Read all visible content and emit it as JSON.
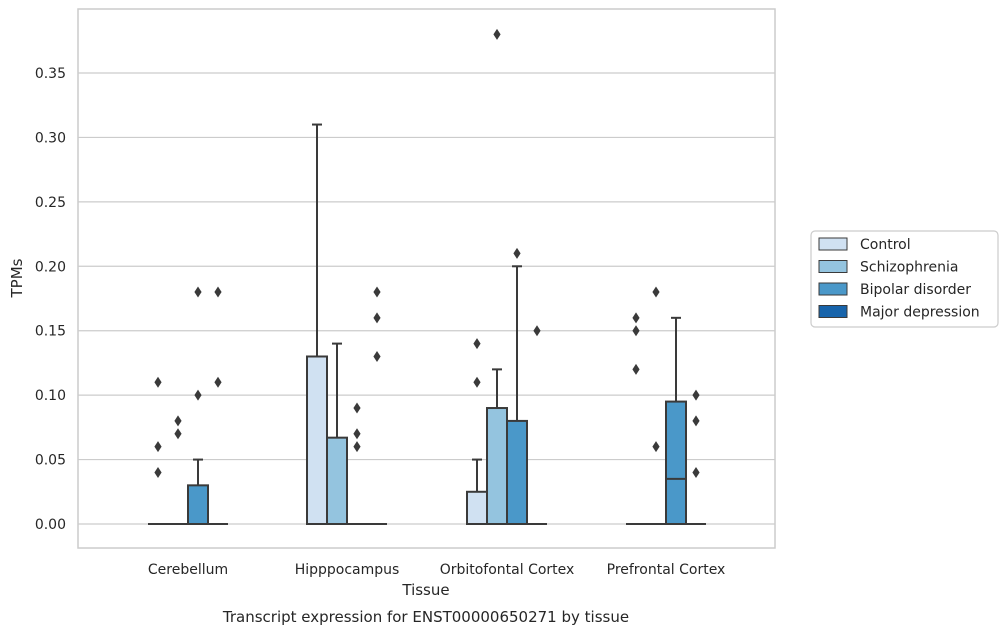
{
  "chart_data": {
    "type": "box",
    "title": "",
    "caption": "Transcript expression for ENST00000650271 by tissue",
    "xlabel": "Tissue",
    "ylabel": "TPMs",
    "ylim": [
      -0.018,
      0.395
    ],
    "yticks": [
      "0.00",
      "0.05",
      "0.10",
      "0.15",
      "0.20",
      "0.25",
      "0.30",
      "0.35"
    ],
    "grid": "horizontal",
    "legend_position": "right",
    "categories": [
      "Cerebellum",
      "Hipppocampus",
      "Orbitofontal Cortex",
      "Prefrontal Cortex"
    ],
    "series": [
      {
        "name": "Control",
        "color": "#d0e1f2",
        "boxes": [
          {
            "q1": 0,
            "median": 0,
            "q3": 0,
            "whisker_low": 0,
            "whisker_high": 0,
            "outliers": [
              0.04,
              0.06,
              0.11
            ]
          },
          {
            "q1": 0,
            "median": 0,
            "q3": 0.13,
            "whisker_low": 0,
            "whisker_high": 0.31,
            "outliers": []
          },
          {
            "q1": 0,
            "median": 0,
            "q3": 0.025,
            "whisker_low": 0,
            "whisker_high": 0.05,
            "outliers": [
              0.11,
              0.14
            ]
          },
          {
            "q1": 0,
            "median": 0,
            "q3": 0,
            "whisker_low": 0,
            "whisker_high": 0,
            "outliers": [
              0.12,
              0.15,
              0.16
            ]
          }
        ]
      },
      {
        "name": "Schizophrenia",
        "color": "#94c4df",
        "boxes": [
          {
            "q1": 0,
            "median": 0,
            "q3": 0,
            "whisker_low": 0,
            "whisker_high": 0,
            "outliers": [
              0.07,
              0.08
            ]
          },
          {
            "q1": 0,
            "median": 0,
            "q3": 0.067,
            "whisker_low": 0,
            "whisker_high": 0.14,
            "outliers": []
          },
          {
            "q1": 0,
            "median": 0,
            "q3": 0.09,
            "whisker_low": 0,
            "whisker_high": 0.12,
            "outliers": [
              0.38
            ]
          },
          {
            "q1": 0,
            "median": 0,
            "q3": 0,
            "whisker_low": 0,
            "whisker_high": 0,
            "outliers": [
              0.06,
              0.18
            ]
          }
        ]
      },
      {
        "name": "Bipolar disorder",
        "color": "#4a98c9",
        "boxes": [
          {
            "q1": 0,
            "median": 0,
            "q3": 0.03,
            "whisker_low": 0,
            "whisker_high": 0.05,
            "outliers": [
              0.1,
              0.18
            ]
          },
          {
            "q1": 0,
            "median": 0,
            "q3": 0,
            "whisker_low": 0,
            "whisker_high": 0,
            "outliers": [
              0.06,
              0.07,
              0.09
            ]
          },
          {
            "q1": 0,
            "median": 0,
            "q3": 0.08,
            "whisker_low": 0,
            "whisker_high": 0.2,
            "outliers": [
              0.21
            ]
          },
          {
            "q1": 0,
            "median": 0.035,
            "q3": 0.095,
            "whisker_low": 0,
            "whisker_high": 0.16,
            "outliers": []
          }
        ]
      },
      {
        "name": "Major depression",
        "color": "#1764ab",
        "boxes": [
          {
            "q1": 0,
            "median": 0,
            "q3": 0,
            "whisker_low": 0,
            "whisker_high": 0,
            "outliers": [
              0.11,
              0.18
            ]
          },
          {
            "q1": 0,
            "median": 0,
            "q3": 0,
            "whisker_low": 0,
            "whisker_high": 0,
            "outliers": [
              0.13,
              0.16,
              0.18
            ]
          },
          {
            "q1": 0,
            "median": 0,
            "q3": 0,
            "whisker_low": 0,
            "whisker_high": 0,
            "outliers": [
              0.15
            ]
          },
          {
            "q1": 0,
            "median": 0,
            "q3": 0,
            "whisker_low": 0,
            "whisker_high": 0,
            "outliers": [
              0.04,
              0.08,
              0.1
            ]
          }
        ]
      }
    ],
    "colors": {
      "axes_edge": "#cccccc",
      "grid": "#cccccc",
      "box_edge": "#3a3a3a",
      "box_fill_face": "#5b8fb9"
    }
  }
}
